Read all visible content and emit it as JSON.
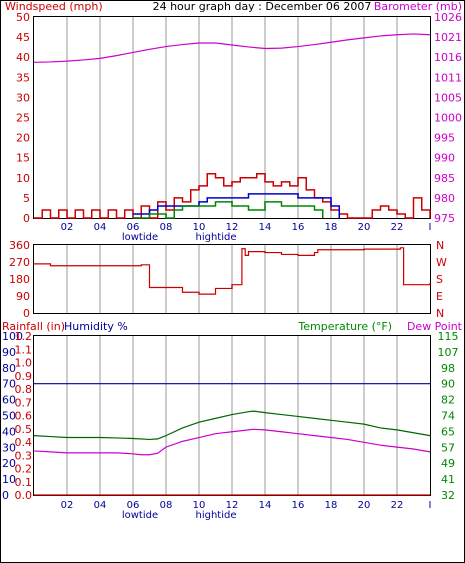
{
  "header": {
    "left": "Windspeed (mph)",
    "center": "24 hour graph day : December 06 2007",
    "right": "Barometer (mb)"
  },
  "colors": {
    "wind": "#cc0000",
    "gust": "#ee0000",
    "avg": "#0000cc",
    "low": "#008800",
    "baro": "#cc00cc",
    "dir": "#cc0000",
    "hum": "#000099",
    "temp": "#006600",
    "dew": "#cc00cc",
    "rain": "#cc0000",
    "grid": "#cccccc",
    "labels_green": "#008800",
    "labels_blue": "#000099"
  },
  "hour_ticks": [
    "02",
    "04",
    "06",
    "08",
    "10",
    "12",
    "14",
    "16",
    "18",
    "20",
    "22",
    "I"
  ],
  "tides": {
    "low": "lowtide",
    "high": "hightide"
  },
  "chart_data": [
    {
      "type": "line",
      "name": "wind-barometer",
      "title": "24 hour graph day : December 06 2007",
      "ylabel_left": "Windspeed (mph)",
      "ylabel_right": "Barometer (mb)",
      "yticks_left": [
        "50",
        "45",
        "40",
        "35",
        "30",
        "25",
        "20",
        "15",
        "10",
        "5",
        "0"
      ],
      "yticks_right": [
        "1026",
        "1021",
        "1016",
        "1011",
        "1005",
        "1000",
        "995",
        "990",
        "985",
        "980",
        "975"
      ],
      "ylim_left": [
        0,
        50
      ],
      "ylim_right": [
        975,
        1026
      ],
      "xlim": [
        0,
        24
      ],
      "series": [
        {
          "key": "baro",
          "axis": "right",
          "x": [
            0,
            1,
            2,
            3,
            4,
            5,
            6,
            7,
            8,
            9,
            10,
            11,
            12,
            13,
            14,
            15,
            16,
            17,
            18,
            19,
            20,
            21,
            22,
            23,
            24
          ],
          "values": [
            1014.5,
            1014.6,
            1014.8,
            1015.1,
            1015.5,
            1016.2,
            1017.0,
            1017.8,
            1018.5,
            1019.0,
            1019.4,
            1019.4,
            1018.9,
            1018.4,
            1018.0,
            1018.1,
            1018.5,
            1019.0,
            1019.6,
            1020.2,
            1020.7,
            1021.2,
            1021.5,
            1021.7,
            1021.5
          ]
        },
        {
          "key": "wind",
          "axis": "left",
          "x": [
            0,
            0.5,
            1,
            1.5,
            2,
            2.5,
            3,
            3.5,
            4,
            4.5,
            5,
            5.5,
            6,
            6.5,
            7,
            7.5,
            8,
            8.5,
            9,
            9.5,
            10,
            10.5,
            11,
            11.5,
            12,
            12.5,
            13,
            13.5,
            14,
            14.5,
            15,
            15.5,
            16,
            16.5,
            17,
            17.5,
            18,
            18.5,
            19,
            19.5,
            20,
            20.5,
            21,
            21.5,
            22,
            22.5,
            23,
            23.5,
            24
          ],
          "values": [
            0,
            2,
            0,
            2,
            0,
            2,
            0,
            2,
            0,
            2,
            0,
            2,
            0,
            3,
            0,
            4,
            2,
            5,
            4,
            7,
            8,
            11,
            10,
            8,
            9,
            10,
            10,
            11,
            9,
            8,
            9,
            8,
            10,
            7,
            5,
            4,
            2,
            1,
            0,
            0,
            0,
            2,
            3,
            2,
            1,
            0,
            5,
            2,
            0
          ]
        },
        {
          "key": "avg",
          "axis": "left",
          "x": [
            6,
            7,
            7.5,
            8,
            9,
            10,
            10.5,
            11,
            12,
            13,
            14,
            15,
            16,
            17,
            18,
            18.5
          ],
          "values": [
            1,
            2,
            3,
            3,
            3,
            4,
            5,
            5,
            5,
            6,
            6,
            6,
            5,
            5,
            3,
            0
          ]
        },
        {
          "key": "low",
          "axis": "left",
          "x": [
            6,
            7,
            8,
            8.5,
            9,
            10,
            11,
            12,
            13,
            14,
            15,
            16,
            17,
            17.5
          ],
          "values": [
            0,
            1,
            0,
            2,
            3,
            3,
            4,
            3,
            2,
            4,
            3,
            3,
            2,
            0
          ]
        }
      ]
    },
    {
      "type": "line",
      "name": "wind-direction",
      "yticks_left": [
        "360",
        "270",
        "180",
        "90",
        "0"
      ],
      "yticks_right": [
        "N",
        "W",
        "S",
        "E",
        "N"
      ],
      "ylim": [
        0,
        360
      ],
      "xlim": [
        0,
        24
      ],
      "series": [
        {
          "key": "dir",
          "x": [
            0,
            0.8,
            1,
            6,
            6.5,
            7,
            8,
            9,
            10,
            11,
            11.8,
            12,
            12.6,
            12.8,
            13,
            14,
            15,
            16,
            17,
            17.2,
            18,
            20,
            22.2,
            22.4,
            24
          ],
          "values": [
            260,
            260,
            250,
            250,
            255,
            135,
            135,
            110,
            100,
            130,
            130,
            150,
            340,
            305,
            325,
            320,
            310,
            305,
            320,
            335,
            335,
            338,
            345,
            150,
            160
          ]
        }
      ]
    },
    {
      "type": "line",
      "name": "rain-humidity-temperature",
      "labels": {
        "rain": "Rainfall (in)",
        "humidity": "Humidity %",
        "temperature": "Temperature (°F)",
        "dewpoint": "Dew Point"
      },
      "yticks_humidity": [
        "100",
        "90",
        "80",
        "70",
        "60",
        "50",
        "40",
        "30",
        "20",
        "10",
        "0"
      ],
      "yticks_rain": [
        "1.2",
        "1.1",
        "1.0",
        "0.9",
        "0.8",
        "0.7",
        "0.6",
        "0.5",
        "0.4",
        "0.3",
        "0.2",
        "0.1",
        "0.0"
      ],
      "yticks_temp": [
        "115",
        "107",
        "98",
        "90",
        "82",
        "74",
        "65",
        "57",
        "49",
        "41",
        "32"
      ],
      "ylim_temp": [
        32,
        115
      ],
      "ylim_humidity": [
        0,
        100
      ],
      "ylim_rain": [
        0,
        1.2
      ],
      "xlim": [
        0,
        24
      ],
      "series": [
        {
          "key": "hum",
          "x": [
            0,
            24
          ],
          "values": [
            70,
            70
          ]
        },
        {
          "key": "rain",
          "x": [
            0,
            24
          ],
          "values": [
            0,
            0
          ]
        },
        {
          "key": "temp",
          "x": [
            0,
            1,
            2,
            3,
            4,
            5,
            6,
            7,
            7.5,
            8,
            9,
            10,
            11,
            12,
            13,
            13.3,
            14,
            15,
            16,
            17,
            18,
            19,
            20,
            21,
            22,
            23,
            24
          ],
          "values": [
            63,
            62.5,
            62,
            62,
            62,
            61.8,
            61.5,
            61,
            61.3,
            63,
            67,
            70,
            72,
            74,
            75.5,
            75.8,
            75,
            74,
            73,
            72,
            71,
            70,
            69,
            67,
            66,
            64.5,
            63
          ]
        },
        {
          "key": "dew",
          "x": [
            0,
            1,
            2,
            3,
            4,
            5,
            6,
            6.5,
            7,
            7.5,
            8,
            9,
            10,
            11,
            12,
            13,
            13.3,
            14,
            15,
            16,
            17,
            18,
            19,
            20,
            21,
            22,
            23,
            24
          ],
          "values": [
            55,
            54.5,
            54,
            54,
            54,
            54,
            53.5,
            53,
            53,
            53.8,
            57,
            60,
            62,
            64,
            65,
            66,
            66.3,
            66,
            65,
            64,
            63,
            62,
            61,
            59.5,
            58,
            57,
            56,
            54.5
          ]
        }
      ]
    }
  ]
}
